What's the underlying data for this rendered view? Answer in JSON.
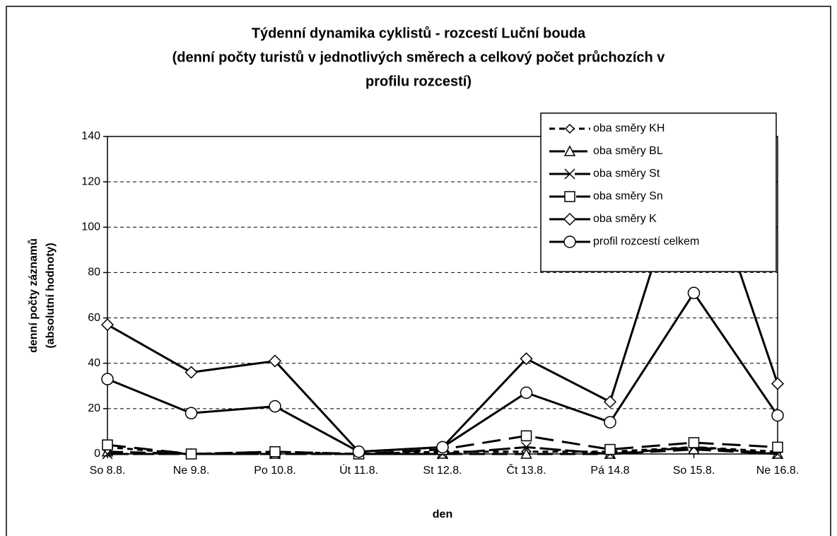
{
  "chart_data": {
    "type": "line",
    "title": [
      "Týdenní dynamika cyklistů - rozcestí Luční bouda",
      "(denní počty turistů v jednotlivých směrech a celkový počet průchozích v",
      "profilu rozcestí)"
    ],
    "x_label": "den",
    "y_label": [
      "denní počty záznamů",
      "(absolutní hodnoty)"
    ],
    "categories": [
      "So 8.8.",
      "Ne 9.8.",
      "Po 10.8.",
      "Út 11.8.",
      "St 12.8.",
      "Čt 13.8.",
      "Pá 14.8",
      "So 15.8.",
      "Ne 16.8."
    ],
    "ylim": [
      0,
      140
    ],
    "yticks": [
      0,
      20,
      40,
      60,
      80,
      100,
      120,
      140
    ],
    "grid": true,
    "legend": "top-right",
    "series": [
      {
        "name": "oba směry KH",
        "color": "#000000",
        "dash": "8 6",
        "marker": "diamond",
        "values": [
          3,
          0,
          1,
          0,
          1,
          1,
          1,
          3,
          1
        ]
      },
      {
        "name": "oba směry BL",
        "color": "#000000",
        "dash": "22 10",
        "marker": "triangle",
        "values": [
          1,
          0,
          0,
          0,
          0,
          0,
          0,
          2,
          0
        ]
      },
      {
        "name": "oba směry St",
        "color": "#000000",
        "dash": "30 6",
        "marker": "cross",
        "values": [
          0,
          0,
          0,
          0,
          0,
          3,
          0,
          3,
          0
        ]
      },
      {
        "name": "oba směry Sn",
        "color": "#000000",
        "dash": "26 12",
        "marker": "square",
        "values": [
          4,
          0,
          1,
          0,
          2,
          8,
          2,
          5,
          3
        ]
      },
      {
        "name": "oba směry K",
        "color": "#000000",
        "dash": "none",
        "marker": "diamond-large",
        "values": [
          57,
          36,
          41,
          1,
          3,
          42,
          23,
          140,
          31
        ]
      },
      {
        "name": "profil rozcestí celkem",
        "color": "#000000",
        "dash": "none",
        "marker": "circle",
        "values": [
          33,
          18,
          21,
          1,
          3,
          27,
          14,
          71,
          17
        ]
      }
    ]
  }
}
